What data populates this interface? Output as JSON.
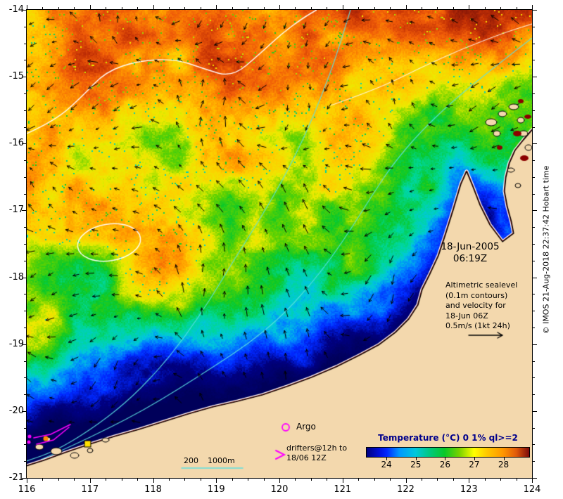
{
  "header": {
    "date": "18-Jun-2005",
    "time": "06:19Z"
  },
  "axes": {
    "x_labels": [
      "116",
      "117",
      "118",
      "119",
      "120",
      "121",
      "122",
      "123",
      "124"
    ],
    "y_labels": [
      "-14",
      "-15",
      "-16",
      "-17",
      "-18",
      "-19",
      "-20",
      "-21"
    ],
    "lon_range": [
      116,
      124
    ],
    "lat_range": [
      -21,
      -14
    ]
  },
  "annotations": {
    "altimetric": [
      "Altimetric sealevel",
      "(0.1m contours)",
      "and velocity for",
      "18-Jun 06Z",
      "0.5m/s (1kt 24h)"
    ],
    "argo": "Argo",
    "drifters": [
      "drifters@12h to",
      "18/06 12Z"
    ],
    "isobath_200": "200",
    "isobath_1000": "1000m"
  },
  "colorbar": {
    "title": "Temperature (°C) 0 1% ql>=2",
    "title_color": "#00008b",
    "tick_labels": [
      "24",
      "25",
      "26",
      "27",
      "28"
    ],
    "tick_values": [
      24,
      25,
      26,
      27,
      28
    ],
    "value_range": [
      23.3,
      28.9
    ],
    "palette_stops": [
      [
        0,
        "#000080"
      ],
      [
        8,
        "#0010dc"
      ],
      [
        12.5,
        "#0028ff"
      ],
      [
        20,
        "#0096ff"
      ],
      [
        30,
        "#00c8dc"
      ],
      [
        39,
        "#00c87d"
      ],
      [
        48,
        "#0ac828"
      ],
      [
        57,
        "#78d200"
      ],
      [
        66,
        "#ffff00"
      ],
      [
        74,
        "#ffc800"
      ],
      [
        84,
        "#ff9600"
      ],
      [
        92,
        "#e05a0a"
      ],
      [
        100,
        "#7d0a0a"
      ]
    ]
  },
  "credit": "© IMOS 21-Aug-2018 22:37:42 Hobart time",
  "map_colors": {
    "land": "#f3d8ad",
    "coastline": "#000000",
    "coast_fringe": "#7a1414",
    "altimetry_contour": "#ffffff",
    "bathy_contour": "#5ce0e0",
    "vector": "#000000",
    "drifter": "#ff00ff",
    "argo_marker": "#ff00ff",
    "hot_patch": "#8b0000"
  }
}
